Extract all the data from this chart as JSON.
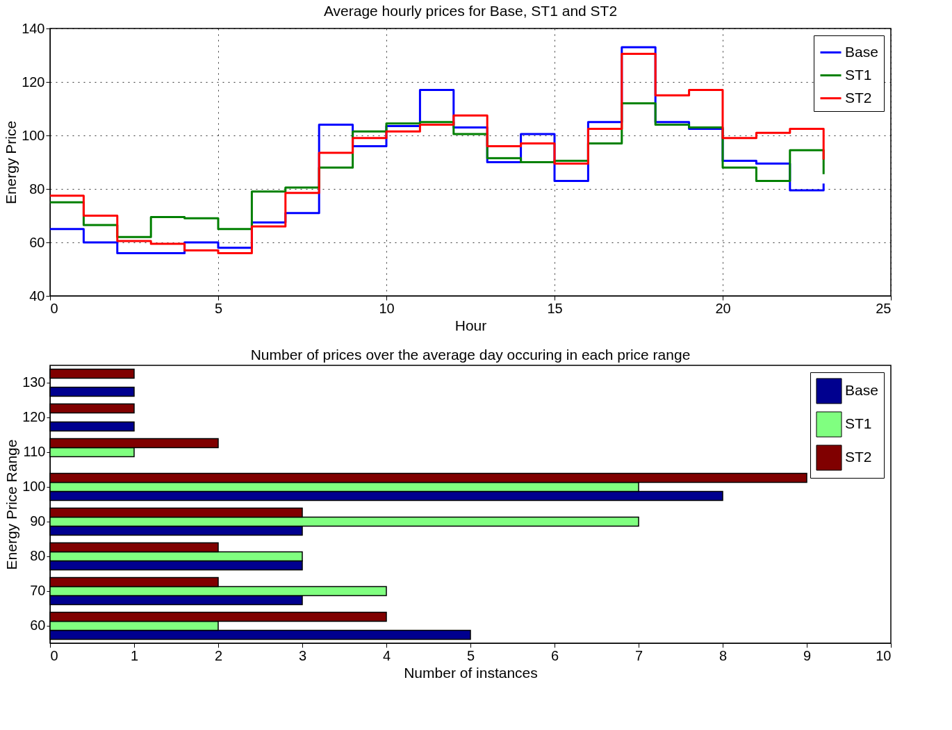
{
  "chart_data": [
    {
      "type": "step",
      "title": "Average hourly prices for Base, ST1 and ST2",
      "xlabel": "Hour",
      "ylabel": "Energy Price",
      "x": [
        0,
        1,
        2,
        3,
        4,
        5,
        6,
        7,
        8,
        9,
        10,
        11,
        12,
        13,
        14,
        15,
        16,
        17,
        18,
        19,
        20,
        21,
        22,
        23
      ],
      "series": [
        {
          "name": "Base",
          "color": "#0000ff",
          "values": [
            65,
            60,
            56,
            56,
            60,
            58,
            67.5,
            71,
            104,
            96,
            103.5,
            117,
            103,
            90,
            100.5,
            83,
            105,
            133,
            105,
            102.5,
            90.5,
            89.5,
            79.5,
            82
          ]
        },
        {
          "name": "ST1",
          "color": "#008000",
          "values": [
            75,
            66.5,
            62,
            69.5,
            69,
            65,
            79,
            80.5,
            88,
            101.5,
            104.5,
            105,
            100.5,
            91.5,
            90,
            90.5,
            97,
            112,
            104,
            103,
            88,
            83,
            94.5,
            85.5
          ]
        },
        {
          "name": "ST2",
          "color": "#ff0000",
          "values": [
            77.5,
            70,
            60.5,
            59.5,
            57,
            56,
            66,
            78.5,
            93.5,
            99,
            101.5,
            104,
            107.5,
            96,
            97,
            89.5,
            102.5,
            130.5,
            115,
            117,
            99,
            101,
            102.5,
            91
          ]
        }
      ],
      "xlim": [
        0,
        25
      ],
      "xticks": [
        0,
        5,
        10,
        15,
        20,
        25
      ],
      "ylim": [
        40,
        140
      ],
      "yticks": [
        40,
        60,
        80,
        100,
        120,
        140
      ],
      "grid": true,
      "legend": "top right"
    },
    {
      "type": "bar",
      "orientation": "horizontal",
      "title": "Number of prices over the average day occuring in each price range",
      "xlabel": "Number of instances",
      "ylabel": "Energy Price Range",
      "categories": [
        "130",
        "120",
        "110",
        "100",
        "90",
        "80",
        "70",
        "60"
      ],
      "series": [
        {
          "name": "Base",
          "color": "#00008f",
          "values": [
            1,
            1,
            0,
            8,
            3,
            3,
            3,
            5
          ]
        },
        {
          "name": "ST1",
          "color": "#80ff80",
          "values": [
            0,
            0,
            1,
            7,
            7,
            3,
            4,
            2
          ]
        },
        {
          "name": "ST2",
          "color": "#800000",
          "values": [
            1,
            1,
            2,
            9,
            3,
            2,
            2,
            4
          ]
        }
      ],
      "xlim": [
        0,
        10
      ],
      "xticks": [
        0,
        1,
        2,
        3,
        4,
        5,
        6,
        7,
        8,
        9,
        10
      ],
      "legend": "top right"
    }
  ]
}
